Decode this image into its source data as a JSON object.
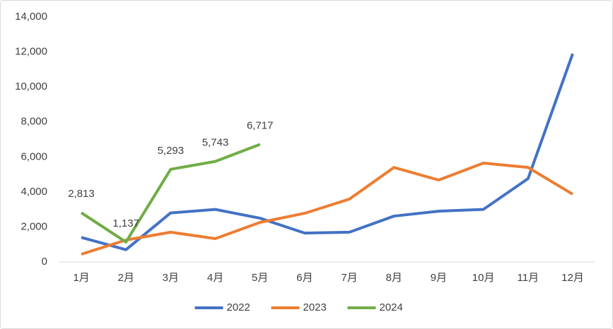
{
  "chart_data": {
    "type": "line",
    "categories": [
      "1月",
      "2月",
      "3月",
      "4月",
      "5月",
      "6月",
      "7月",
      "8月",
      "9月",
      "10月",
      "11月",
      "12月"
    ],
    "series": [
      {
        "name": "2022",
        "color": "#4472c4",
        "values": [
          1400,
          700,
          2800,
          3000,
          2500,
          1650,
          1700,
          2620,
          2900,
          3000,
          4760,
          11900
        ]
      },
      {
        "name": "2023",
        "color": "#ed7d31",
        "values": [
          440,
          1250,
          1700,
          1330,
          2260,
          2780,
          3590,
          5400,
          4680,
          5650,
          5400,
          3870
        ]
      },
      {
        "name": "2024",
        "color": "#70ad47",
        "values": [
          2813,
          1137,
          5293,
          5743,
          6717,
          null,
          null,
          null,
          null,
          null,
          null,
          null
        ],
        "value_labels": [
          "2,813",
          "1,137",
          "5,293",
          "5,743",
          "6,717",
          null,
          null,
          null,
          null,
          null,
          null,
          null
        ]
      }
    ],
    "ylim": [
      0,
      14000
    ],
    "yticks": [
      0,
      {
        "value": 2000,
        "label": "2,000"
      },
      {
        "value": 4000,
        "label": "4,000"
      },
      {
        "value": 6000,
        "label": "6,000"
      },
      {
        "value": 8000,
        "label": "8,000"
      },
      {
        "value": 10000,
        "label": "10,000"
      },
      {
        "value": 12000,
        "label": "12,000"
      },
      {
        "value": 14000,
        "label": "14,000"
      }
    ],
    "grid": false,
    "legend": "bottom"
  }
}
